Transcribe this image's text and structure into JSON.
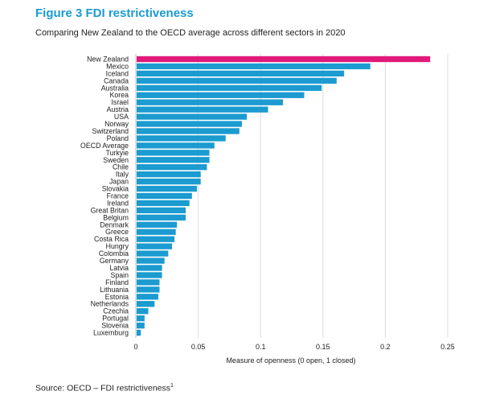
{
  "header": {
    "title": "Figure 3 FDI restrictiveness",
    "subtitle": "Comparing New Zealand to the OECD average across different sectors in 2020"
  },
  "footer": {
    "source": "Source: OECD – FDI restrictiveness",
    "source_note": "1"
  },
  "colors": {
    "highlight": "#e0197a",
    "bar": "#1b9bd0",
    "title": "#1b9bd0"
  },
  "chart_data": {
    "type": "bar",
    "orientation": "horizontal",
    "xlabel": "Measure of openness (0 open, 1 closed)",
    "xlim": [
      0,
      0.25
    ],
    "xticks": [
      "0",
      "0.05",
      "0.1",
      "0.15",
      "0.2",
      "0.25"
    ],
    "xtick_values": [
      0,
      0.05,
      0.1,
      0.15,
      0.2,
      0.25
    ],
    "grid": true,
    "highlight_category": "New Zealand",
    "categories": [
      "New Zealand",
      "Mexico",
      "Iceland",
      "Canada",
      "Australia",
      "Korea",
      "Israel",
      "Austria",
      "USA",
      "Norway",
      "Switzerland",
      "Poland",
      "OECD Average",
      "Turkyie",
      "Sweden",
      "Chile",
      "Italy",
      "Japan",
      "Slovakia",
      "France",
      "Ireland",
      "Great Britan",
      "Belgium",
      "Denmark",
      "Greece",
      "Costa Rica",
      "Hungry",
      "Colombia",
      "Germany",
      "Latvia",
      "Spain",
      "Finland",
      "Lithuania",
      "Estonia",
      "Netherlands",
      "Czechia",
      "Portugal",
      "Slovenia",
      "Luxemburg"
    ],
    "values": [
      0.236,
      0.188,
      0.167,
      0.161,
      0.149,
      0.135,
      0.118,
      0.106,
      0.089,
      0.085,
      0.083,
      0.072,
      0.063,
      0.059,
      0.059,
      0.057,
      0.052,
      0.052,
      0.049,
      0.045,
      0.043,
      0.04,
      0.04,
      0.033,
      0.032,
      0.031,
      0.029,
      0.026,
      0.023,
      0.021,
      0.021,
      0.019,
      0.019,
      0.018,
      0.015,
      0.01,
      0.007,
      0.007,
      0.004
    ]
  }
}
